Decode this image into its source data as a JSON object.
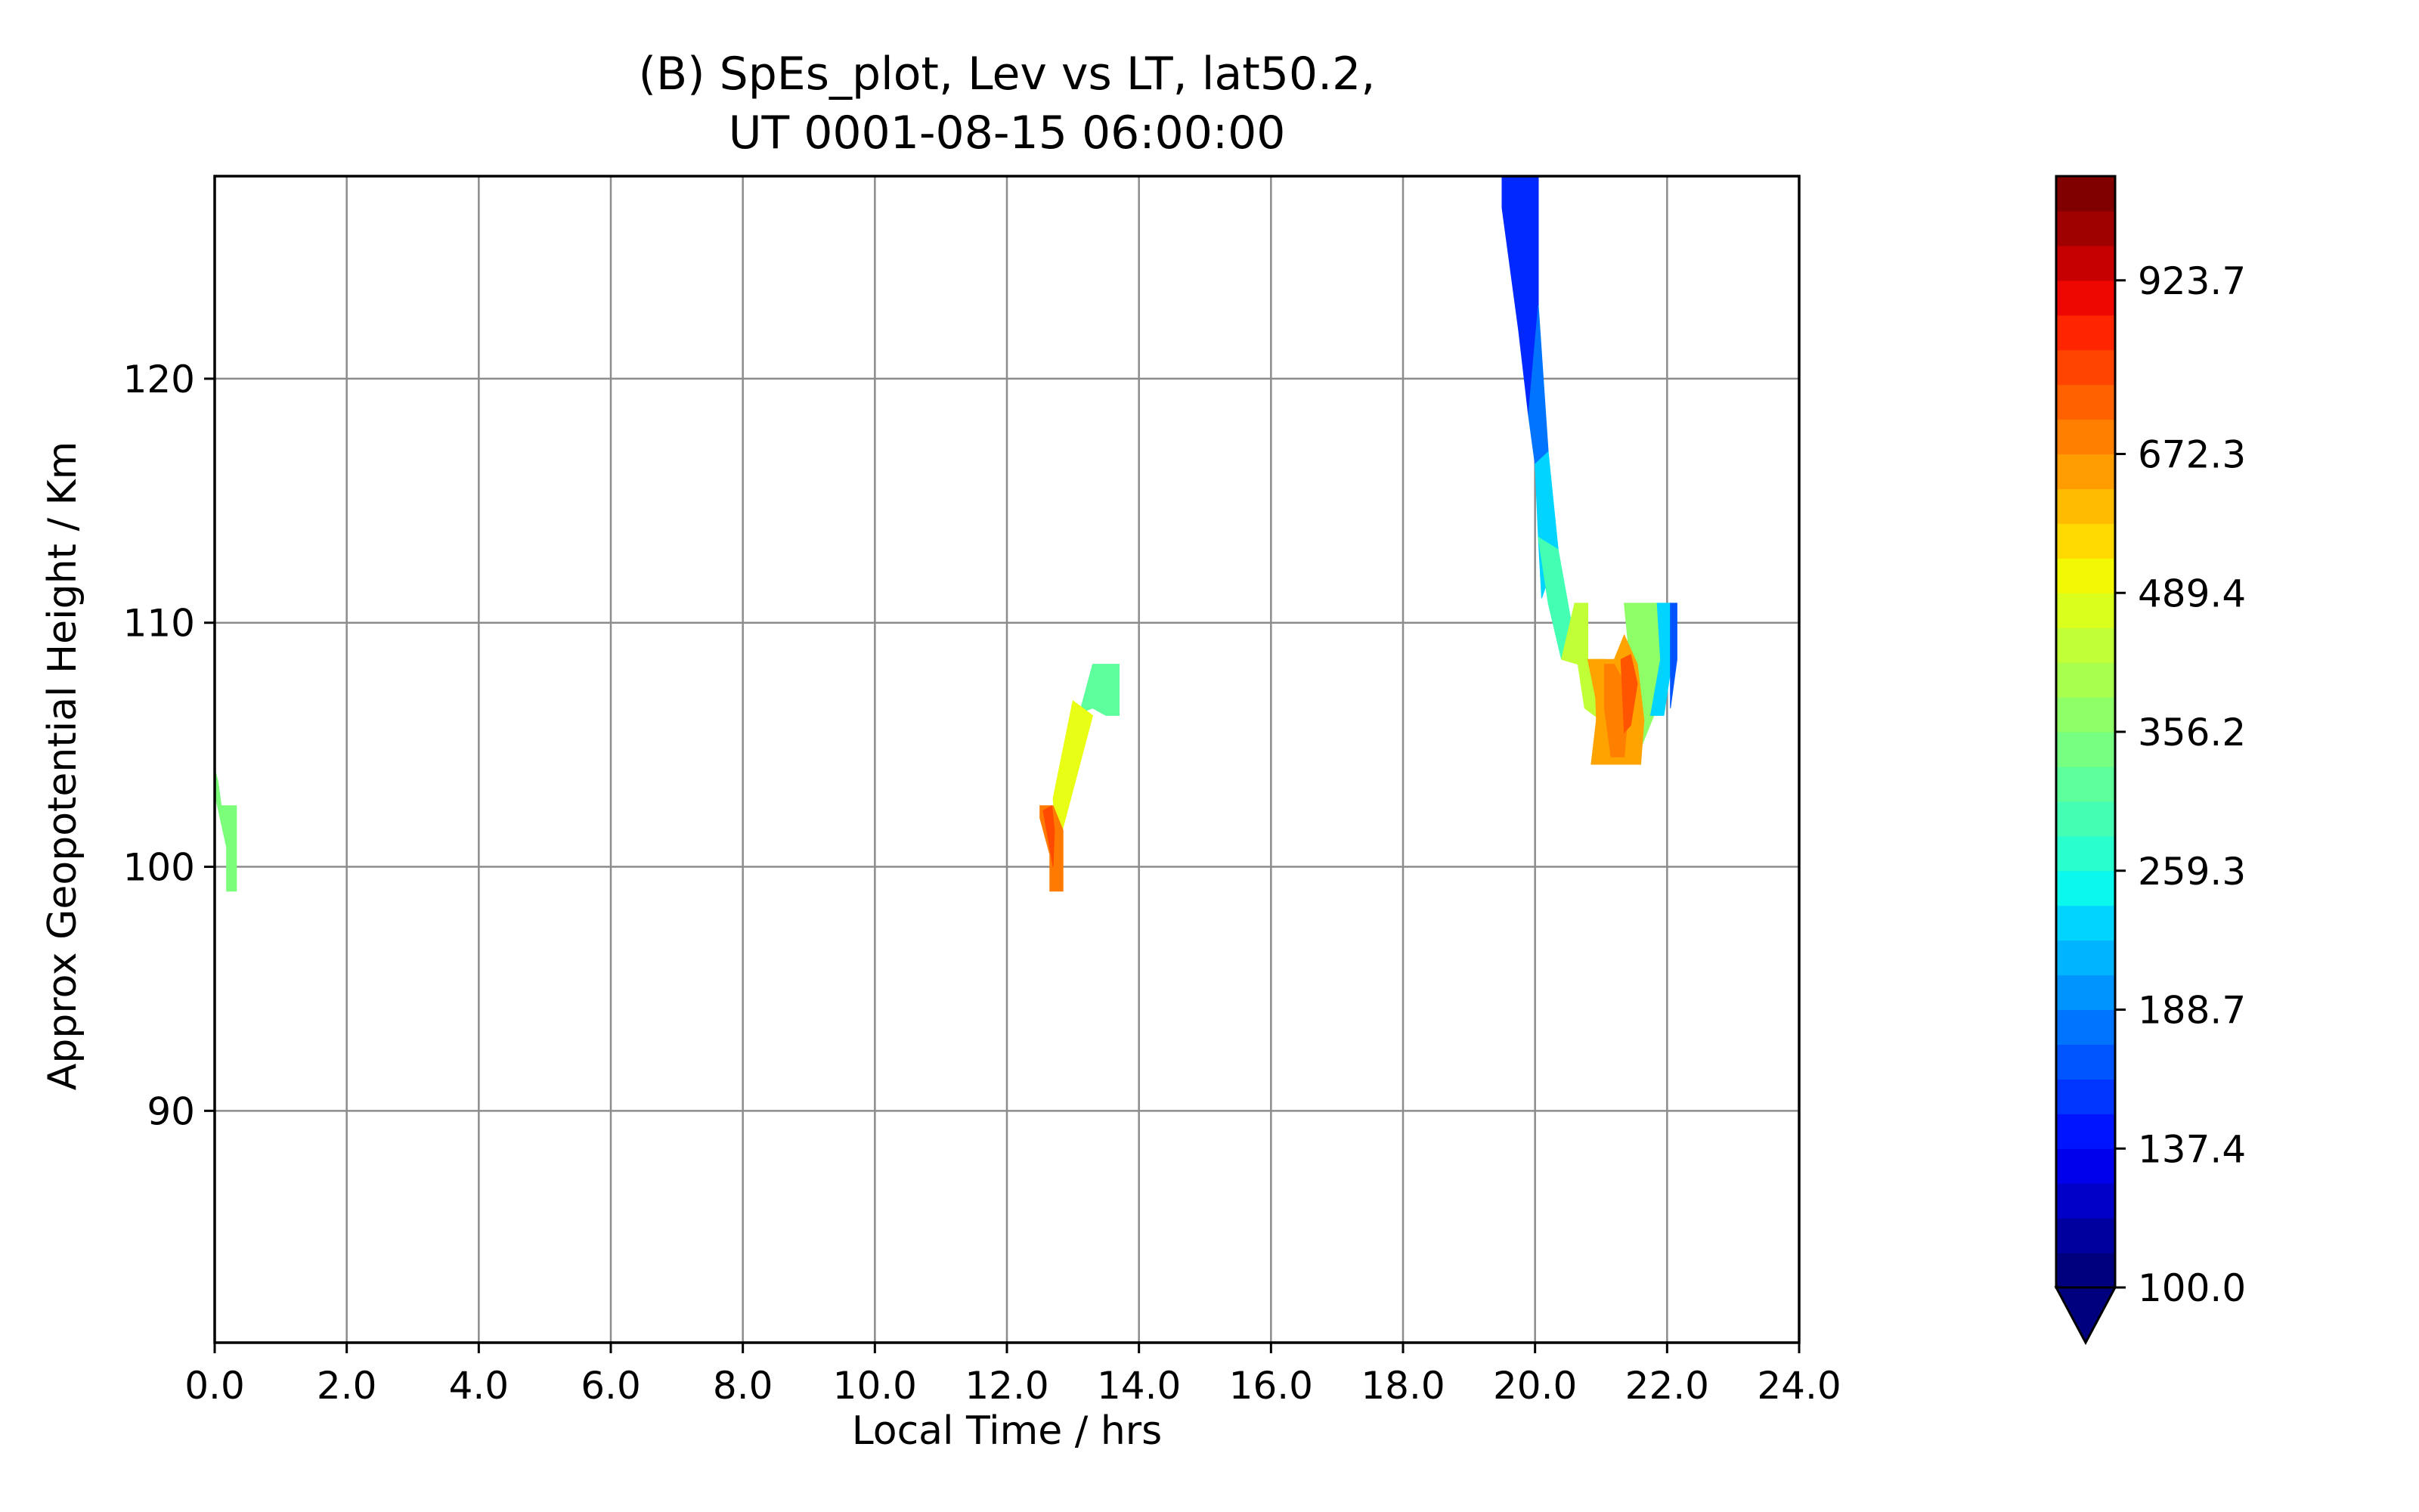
{
  "chart_data": {
    "type": "contour",
    "title_line1": "(B) SpEs_plot, Lev vs LT, lat50.2,",
    "title_line2": "UT 0001-08-15 06:00:00",
    "xlabel": "Local Time / hrs",
    "ylabel": "Approx Geopotential Height / Km",
    "xlim": [
      0,
      24
    ],
    "ylim": [
      80.5,
      128.3
    ],
    "xticks": [
      0,
      2,
      4,
      6,
      8,
      10,
      12,
      14,
      16,
      18,
      20,
      22,
      24
    ],
    "xtick_labels": [
      "0.0",
      "2.0",
      "4.0",
      "6.0",
      "8.0",
      "10.0",
      "12.0",
      "14.0",
      "16.0",
      "18.0",
      "20.0",
      "22.0",
      "24.0"
    ],
    "yticks": [
      90,
      100,
      110,
      120
    ],
    "ytick_labels": [
      "90",
      "100",
      "110",
      "120"
    ],
    "grid": true,
    "colorbar": {
      "tick_labels": [
        "100.0",
        "137.4",
        "188.7",
        "259.3",
        "356.2",
        "489.4",
        "672.3",
        "923.7"
      ],
      "extend": "min",
      "colors": [
        "#00007f",
        "#00009f",
        "#0000c8",
        "#0000ec",
        "#0014ff",
        "#0034ff",
        "#0054ff",
        "#0074ff",
        "#0094ff",
        "#00b4ff",
        "#00d4ff",
        "#0af8ee",
        "#29ffce",
        "#44ffb3",
        "#5dff9a",
        "#76ff80",
        "#8fff67",
        "#a8ff4e",
        "#c1ff36",
        "#daff1d",
        "#f3f903",
        "#ffd900",
        "#ffbb00",
        "#ff9d00",
        "#ff7f00",
        "#ff6100",
        "#ff4300",
        "#ff2500",
        "#ed0700",
        "#c60000",
        "#9f0000",
        "#800000"
      ]
    },
    "regions": [
      {
        "name": "patch-lt0",
        "fill": "#7bff7b",
        "points": [
          [
            0.0,
            104.0
          ],
          [
            0.05,
            103.5
          ],
          [
            0.1,
            102.5
          ],
          [
            0.33,
            102.5
          ],
          [
            0.33,
            99.0
          ],
          [
            0.18,
            99.0
          ],
          [
            0.18,
            100.8
          ],
          [
            0.0,
            103.0
          ]
        ]
      },
      {
        "name": "patch-lt13-green",
        "fill": "#5cff9c",
        "points": [
          [
            13.3,
            108.3
          ],
          [
            13.7,
            108.3
          ],
          [
            13.7,
            106.2
          ],
          [
            13.5,
            106.2
          ],
          [
            13.3,
            106.5
          ],
          [
            13.1,
            106.3
          ]
        ]
      },
      {
        "name": "patch-lt13-yellow",
        "fill": "#e8ff15",
        "points": [
          [
            12.7,
            102.8
          ],
          [
            13.0,
            106.8
          ],
          [
            13.3,
            106.2
          ],
          [
            12.85,
            101.6
          ],
          [
            12.75,
            100.8
          ]
        ]
      },
      {
        "name": "patch-lt13-orange",
        "fill": "#ff7a00",
        "points": [
          [
            12.5,
            102.5
          ],
          [
            12.7,
            102.5
          ],
          [
            12.85,
            101.5
          ],
          [
            12.85,
            99.0
          ],
          [
            12.65,
            99.0
          ],
          [
            12.65,
            100.5
          ],
          [
            12.5,
            102.0
          ]
        ]
      },
      {
        "name": "patch-lt13-red",
        "fill": "#ff4a00",
        "points": [
          [
            12.55,
            102.3
          ],
          [
            12.68,
            102.5
          ],
          [
            12.72,
            101.5
          ],
          [
            12.7,
            100.0
          ]
        ]
      },
      {
        "name": "patch-lt20-blue-top",
        "fill": "#0028ff",
        "points": [
          [
            19.5,
            128.3
          ],
          [
            20.05,
            128.3
          ],
          [
            20.05,
            123.0
          ],
          [
            20.0,
            120.0
          ],
          [
            19.9,
            118.5
          ],
          [
            19.75,
            122.0
          ],
          [
            19.5,
            127.0
          ]
        ]
      },
      {
        "name": "patch-lt20-blue-mid",
        "fill": "#0074ff",
        "points": [
          [
            19.9,
            118.5
          ],
          [
            20.05,
            123.0
          ],
          [
            20.2,
            117.0
          ],
          [
            20.1,
            114.0
          ],
          [
            20.0,
            116.5
          ]
        ]
      },
      {
        "name": "patch-lt20-cyan",
        "fill": "#00d4ff",
        "points": [
          [
            20.0,
            116.5
          ],
          [
            20.2,
            117.0
          ],
          [
            20.35,
            113.0
          ],
          [
            20.1,
            111.0
          ],
          [
            20.05,
            113.5
          ]
        ]
      },
      {
        "name": "patch-lt20-green",
        "fill": "#44ffb3",
        "points": [
          [
            20.05,
            113.5
          ],
          [
            20.35,
            113.0
          ],
          [
            20.55,
            110.0
          ],
          [
            20.4,
            108.5
          ],
          [
            20.2,
            110.8
          ]
        ]
      },
      {
        "name": "patch-lt21-yellowgreen",
        "fill": "#c1ff36",
        "points": [
          [
            20.4,
            108.5
          ],
          [
            20.6,
            110.8
          ],
          [
            20.8,
            110.8
          ],
          [
            20.8,
            108.5
          ],
          [
            20.9,
            108.5
          ],
          [
            21.0,
            106.0
          ],
          [
            20.75,
            106.5
          ],
          [
            20.65,
            108.3
          ]
        ]
      },
      {
        "name": "patch-lt21-left-orange",
        "fill": "#ffa300",
        "points": [
          [
            20.8,
            108.5
          ],
          [
            21.05,
            108.5
          ],
          [
            21.05,
            104.2
          ],
          [
            20.85,
            104.2
          ],
          [
            20.95,
            106.5
          ]
        ]
      },
      {
        "name": "patch-lt21-right-green",
        "fill": "#8fff67",
        "points": [
          [
            21.35,
            110.8
          ],
          [
            22.05,
            110.8
          ],
          [
            22.05,
            108.5
          ],
          [
            21.8,
            106.2
          ],
          [
            21.5,
            104.2
          ],
          [
            21.45,
            108.0
          ]
        ]
      },
      {
        "name": "patch-lt22-cyan",
        "fill": "#00d4ff",
        "points": [
          [
            21.85,
            110.8
          ],
          [
            22.05,
            110.8
          ],
          [
            22.05,
            108.0
          ],
          [
            21.95,
            106.2
          ],
          [
            21.75,
            106.2
          ],
          [
            21.9,
            108.5
          ]
        ]
      },
      {
        "name": "patch-lt22-blue",
        "fill": "#0054ff",
        "points": [
          [
            22.05,
            110.8
          ],
          [
            22.15,
            110.8
          ],
          [
            22.15,
            108.5
          ],
          [
            22.05,
            106.5
          ]
        ]
      },
      {
        "name": "patch-lt21-center-orange",
        "fill": "#ffa300",
        "points": [
          [
            20.9,
            108.5
          ],
          [
            21.0,
            108.5
          ],
          [
            21.2,
            108.5
          ],
          [
            21.35,
            109.5
          ],
          [
            21.55,
            108.3
          ],
          [
            21.65,
            106.0
          ],
          [
            21.6,
            104.2
          ],
          [
            20.95,
            104.2
          ]
        ]
      },
      {
        "name": "patch-lt21-darkorange",
        "fill": "#ff8000",
        "points": [
          [
            21.05,
            108.3
          ],
          [
            21.2,
            108.3
          ],
          [
            21.3,
            107.8
          ],
          [
            21.4,
            106.0
          ],
          [
            21.35,
            104.5
          ],
          [
            21.15,
            104.5
          ],
          [
            21.05,
            106.5
          ]
        ]
      },
      {
        "name": "patch-lt21-red",
        "fill": "#ff5500",
        "points": [
          [
            21.3,
            108.5
          ],
          [
            21.45,
            108.7
          ],
          [
            21.55,
            107.5
          ],
          [
            21.45,
            105.8
          ],
          [
            21.35,
            105.5
          ]
        ]
      }
    ]
  }
}
